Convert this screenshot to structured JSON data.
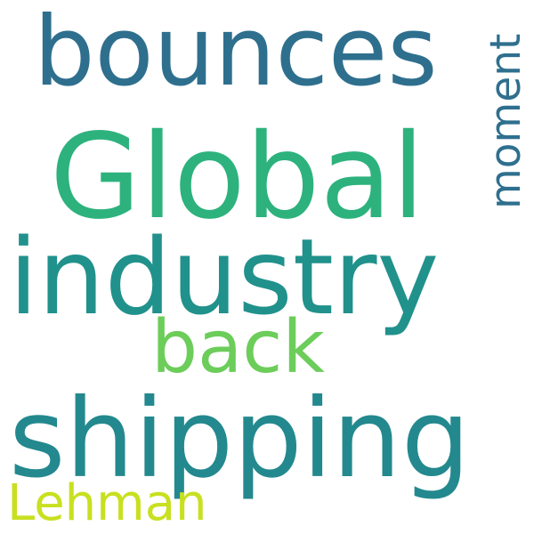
{
  "words": [
    {
      "text": "bounces",
      "color": "#2f6f8e"
    },
    {
      "text": "Global",
      "color": "#2db27d"
    },
    {
      "text": "industry",
      "color": "#21918c"
    },
    {
      "text": "back",
      "color": "#6ccd5a"
    },
    {
      "text": "shipping",
      "color": "#23898e"
    },
    {
      "text": "Lehman",
      "color": "#c8e020"
    },
    {
      "text": "moment",
      "color": "#2f6f8e"
    }
  ]
}
